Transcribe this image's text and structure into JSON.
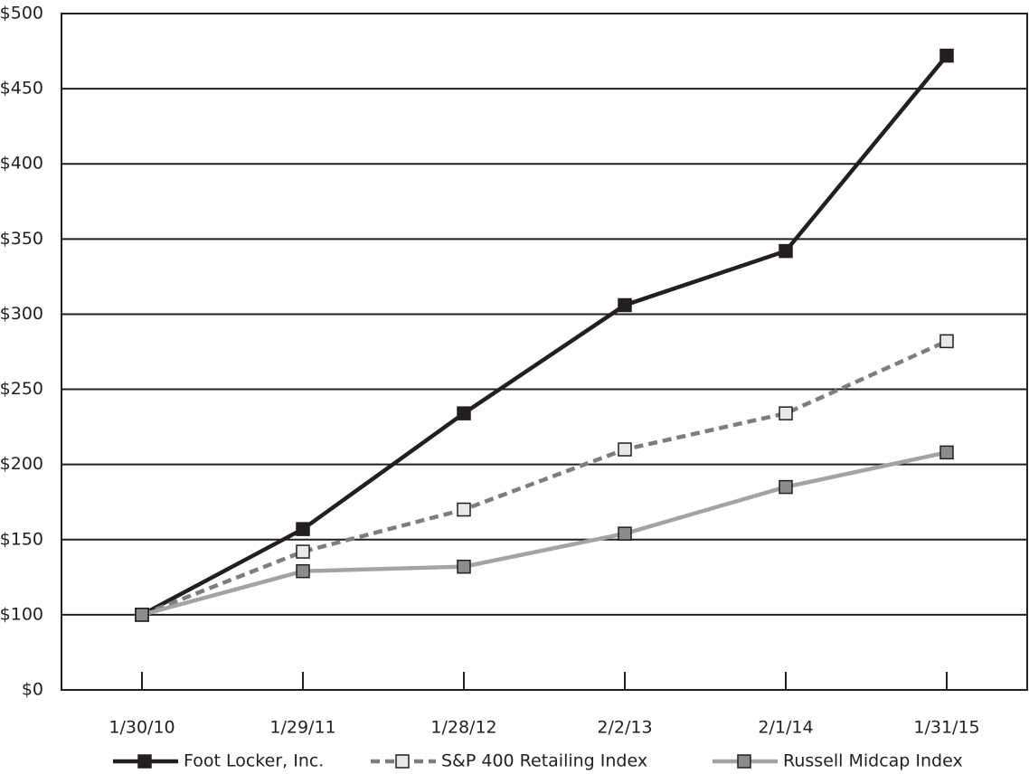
{
  "chart_data": {
    "type": "line",
    "categories": [
      "1/30/10",
      "1/29/11",
      "1/28/12",
      "2/2/13",
      "2/1/14",
      "1/31/15"
    ],
    "series": [
      {
        "name": "Foot Locker, Inc.",
        "color": "#231f20",
        "marker_color": "#231f20",
        "line_style": "solid",
        "values": [
          100,
          157,
          234,
          306,
          342,
          472
        ]
      },
      {
        "name": "S&P 400 Retailing Index",
        "color": "#7d7d7d",
        "marker_color": "#e8e8e8",
        "line_style": "dashed",
        "values": [
          100,
          142,
          170,
          210,
          234,
          282
        ]
      },
      {
        "name": "Russell Midcap Index",
        "color": "#a3a3a3",
        "marker_color": "#8c8c8c",
        "line_style": "solid",
        "values": [
          100,
          129,
          132,
          154,
          185,
          208
        ]
      }
    ],
    "ylim": [
      0,
      500
    ],
    "yticks": [
      {
        "value": 0,
        "label": "$0"
      },
      {
        "value": 100,
        "label": "$100"
      },
      {
        "value": 150,
        "label": "$150"
      },
      {
        "value": 200,
        "label": "$200"
      },
      {
        "value": 250,
        "label": "$250"
      },
      {
        "value": 300,
        "label": "$300"
      },
      {
        "value": 350,
        "label": "$350"
      },
      {
        "value": 400,
        "label": "$400"
      },
      {
        "value": 450,
        "label": "$450"
      },
      {
        "value": 500,
        "label": "$500"
      }
    ],
    "grid": true
  }
}
